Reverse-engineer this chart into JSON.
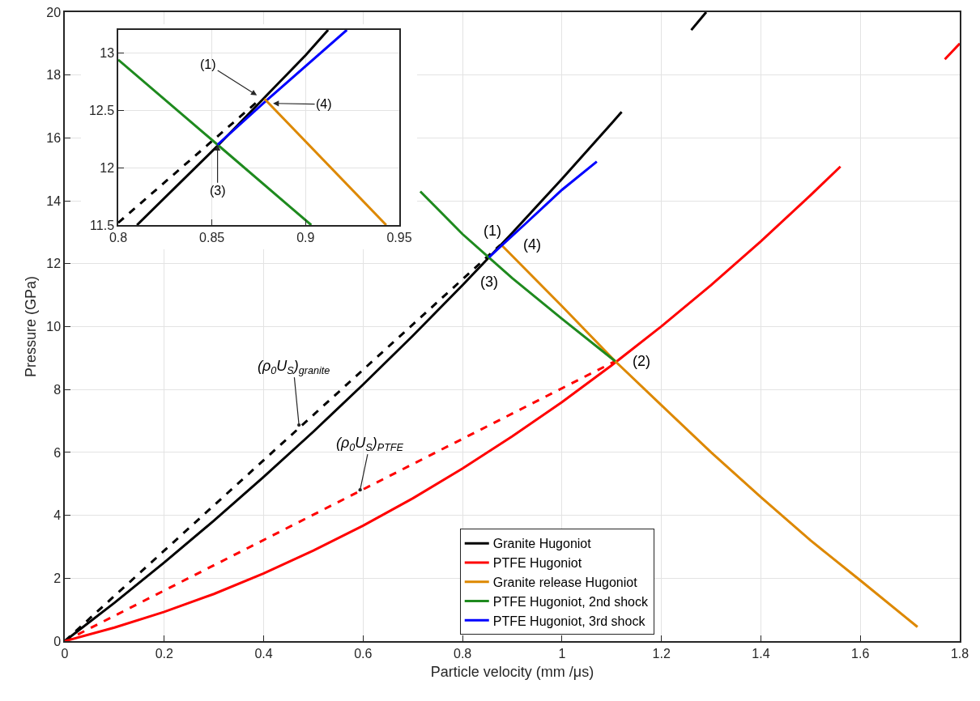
{
  "chart_data": [
    {
      "type": "line",
      "xlabel": "Particle velocity (mm /μs)",
      "ylabel": "Pressure (GPa)",
      "xlim": [
        0,
        1.8
      ],
      "ylim": [
        0,
        20
      ],
      "xticks": [
        0,
        0.2,
        0.4,
        0.6,
        0.8,
        1,
        1.2,
        1.4,
        1.6,
        1.8
      ],
      "yticks": [
        0,
        2,
        4,
        6,
        8,
        10,
        12,
        14,
        16,
        18,
        20
      ],
      "grid": true,
      "legend": "bottom",
      "series": [
        {
          "color": "#000000",
          "line_style": "dashed",
          "x": [
            0,
            0.876
          ],
          "values": [
            0,
            12.6
          ]
        },
        {
          "color": "#ff0000",
          "line_style": "dashed",
          "x": [
            0,
            1.107
          ],
          "values": [
            0,
            8.9
          ]
        },
        {
          "name": "Granite Hugoniot",
          "color": "#000000",
          "line_style": "solid",
          "x": [
            0,
            0.1,
            0.2,
            0.3,
            0.4,
            0.5,
            0.6,
            0.7,
            0.8,
            0.9,
            1.0,
            1.1,
            1.12,
            1.2,
            1.26,
            1.29
          ],
          "values": [
            0,
            1.22,
            2.5,
            3.83,
            5.22,
            6.66,
            8.16,
            9.71,
            11.32,
            12.98,
            14.7,
            16.47,
            16.83,
            null,
            19.43,
            20
          ]
        },
        {
          "name": "PTFE Hugoniot",
          "color": "#ff0000",
          "line_style": "solid",
          "x": [
            0,
            0.1,
            0.2,
            0.3,
            0.4,
            0.5,
            0.6,
            0.7,
            0.8,
            0.9,
            1.0,
            1.1,
            1.2,
            1.3,
            1.4,
            1.5,
            1.56,
            1.65,
            1.77,
            1.8
          ],
          "values": [
            0,
            0.43,
            0.93,
            1.5,
            2.15,
            2.88,
            3.67,
            4.54,
            5.49,
            6.51,
            7.6,
            8.77,
            10.01,
            11.32,
            12.71,
            14.18,
            15.09,
            null,
            18.5,
            19
          ]
        },
        {
          "name": "Granite release Hugoniot",
          "color": "#dd8800",
          "line_style": "solid",
          "x": [
            0.878,
            1.0,
            1.107,
            1.2,
            1.3,
            1.4,
            1.5,
            1.6,
            1.715
          ],
          "values": [
            12.6,
            10.65,
            8.9,
            7.5,
            6.0,
            4.58,
            3.2,
            1.93,
            0.45
          ]
        },
        {
          "name": "PTFE Hugoniot, 2nd shock",
          "color": "#1e8a1e",
          "line_style": "solid",
          "x": [
            0.715,
            0.8,
            0.853,
            0.9,
            1.0,
            1.107
          ],
          "values": [
            14.3,
            12.94,
            12.2,
            11.54,
            10.25,
            8.9
          ]
        },
        {
          "name": "PTFE Hugoniot, 3rd shock",
          "color": "#0000ff",
          "line_style": "solid",
          "x": [
            0.853,
            0.878,
            0.925,
            1.0,
            1.07
          ],
          "values": [
            12.2,
            12.57,
            13.25,
            14.35,
            15.25
          ]
        }
      ],
      "annotations": [
        {
          "text": "(1)",
          "x": 0.876,
          "y": 12.6
        },
        {
          "text": "(2)",
          "x": 1.107,
          "y": 8.9
        },
        {
          "text": "(3)",
          "x": 0.853,
          "y": 12.2
        },
        {
          "text": "(4)",
          "x": 0.878,
          "y": 12.57
        },
        {
          "text": "(ρ$_{0}$U$_{S}$)$_{granite}$",
          "x": 0.471,
          "y": 6.87
        },
        {
          "text": "(ρ$_{0}$U$_{S}$)$_{PTFE}$",
          "x": 0.594,
          "y": 4.81
        }
      ]
    },
    {
      "type": "line",
      "xlim": [
        0.8,
        0.95
      ],
      "ylim": [
        11.5,
        13.2
      ],
      "xticks": [
        0.8,
        0.85,
        0.9,
        0.95
      ],
      "yticks": [
        11.5,
        12,
        12.5,
        13
      ],
      "grid": true,
      "series": [
        {
          "color": "#000000",
          "line_style": "solid",
          "x": [
            0.81,
            0.853,
            0.9,
            0.912
          ],
          "values": [
            11.5,
            12.19,
            12.98,
            13.2
          ]
        },
        {
          "color": "#000000",
          "line_style": "dashed",
          "x": [
            0.8,
            0.876
          ],
          "values": [
            11.52,
            12.6
          ]
        },
        {
          "color": "#1e8a1e",
          "line_style": "solid",
          "x": [
            0.8,
            0.853,
            0.903
          ],
          "values": [
            12.94,
            12.2,
            11.5
          ]
        },
        {
          "color": "#0000ff",
          "line_style": "solid",
          "x": [
            0.853,
            0.878,
            0.922
          ],
          "values": [
            12.2,
            12.57,
            13.2
          ]
        },
        {
          "color": "#dd8800",
          "line_style": "solid",
          "x": [
            0.878,
            0.943
          ],
          "values": [
            12.6,
            11.5
          ]
        }
      ],
      "annotations": [
        {
          "text": "(1)",
          "x": 0.874,
          "y": 12.63
        },
        {
          "text": "(4)",
          "x": 0.8826,
          "y": 12.56
        },
        {
          "text": "(3)",
          "x": 0.853,
          "y": 12.2
        }
      ]
    }
  ]
}
